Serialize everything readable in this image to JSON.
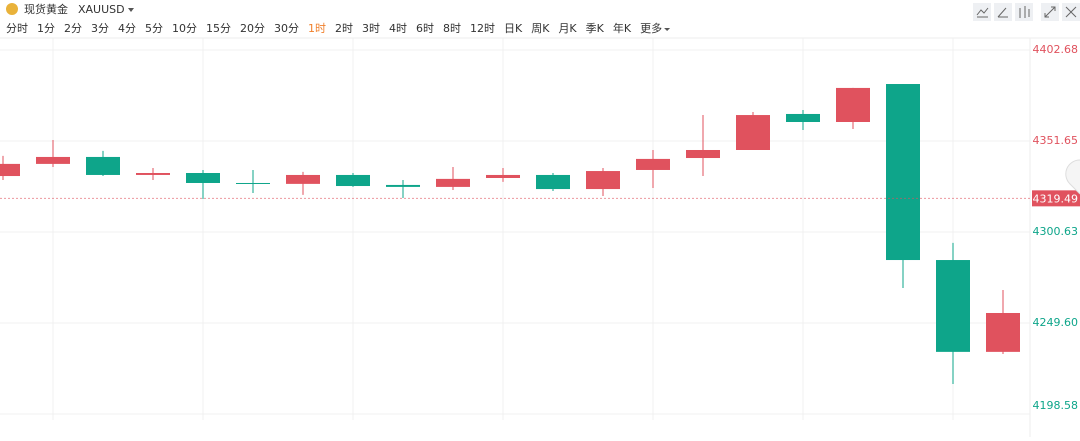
{
  "header": {
    "title": "现货黄金",
    "symbol": "XAUUSD",
    "periods": [
      {
        "label": "分时"
      },
      {
        "label": "1分"
      },
      {
        "label": "2分"
      },
      {
        "label": "3分"
      },
      {
        "label": "4分"
      },
      {
        "label": "5分"
      },
      {
        "label": "10分"
      },
      {
        "label": "15分"
      },
      {
        "label": "20分"
      },
      {
        "label": "30分"
      },
      {
        "label": "1时",
        "active": true
      },
      {
        "label": "2时"
      },
      {
        "label": "3时"
      },
      {
        "label": "4时"
      },
      {
        "label": "6时"
      },
      {
        "label": "8时"
      },
      {
        "label": "12时"
      },
      {
        "label": "日K"
      },
      {
        "label": "周K"
      },
      {
        "label": "月K"
      },
      {
        "label": "季K"
      },
      {
        "label": "年K"
      },
      {
        "label": "更多"
      }
    ],
    "active_color": "#f0802c"
  },
  "chart_data": {
    "type": "candlestick",
    "open": [
      4332.0,
      4338.8,
      4342.7,
      4332.6,
      4333.7,
      4328.1,
      4327.6,
      4332.6,
      4327.0,
      4325.9,
      4330.9,
      4332.6,
      4324.7,
      4335.4,
      4342.1,
      4346.6,
      4366.8,
      4362.3,
      4383.6,
      4284.9,
      4233.4
    ],
    "high": [
      4343.3,
      4352.2,
      4346.1,
      4336.5,
      4335.4,
      4335.4,
      4334.3,
      4333.7,
      4329.8,
      4337.1,
      4336.5,
      4333.7,
      4336.5,
      4346.6,
      4366.2,
      4367.9,
      4369.0,
      4381.4,
      4383.6,
      4294.5,
      4268.1
    ],
    "low": [
      4329.8,
      4337.1,
      4332.0,
      4329.8,
      4319.1,
      4322.5,
      4321.4,
      4325.9,
      4319.7,
      4324.2,
      4328.7,
      4323.6,
      4320.8,
      4325.3,
      4332.0,
      4346.6,
      4357.8,
      4358.4,
      4269.2,
      4215.4,
      4232.2
    ],
    "close": [
      4338.8,
      4342.7,
      4332.6,
      4333.7,
      4328.1,
      4327.6,
      4332.6,
      4326.4,
      4325.9,
      4330.4,
      4332.6,
      4324.7,
      4334.8,
      4341.6,
      4346.6,
      4366.2,
      4362.3,
      4381.4,
      4284.9,
      4233.4,
      4255.2
    ],
    "up_color": "#e0525e",
    "down_color": "#0ea58a",
    "ylim": [
      4195.2,
      4409.4
    ],
    "yticks": [
      4198.58,
      4249.6,
      {
        "value": 4249.6,
        "label": "4249.60"
      },
      4300.63,
      4351.65,
      4402.68
    ],
    "current_price": 4319.49,
    "grid": true
  }
}
